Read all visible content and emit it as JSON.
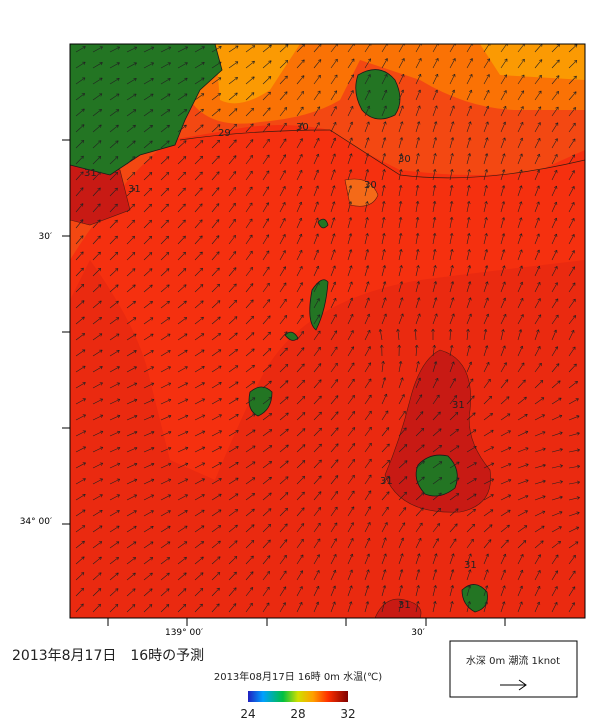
{
  "map": {
    "lat_labels": [
      "30′",
      "34° 00′"
    ],
    "lon_labels": [
      "139° 00′",
      "30′"
    ],
    "contour_labels": [
      "29",
      "30",
      "30",
      "30",
      "31",
      "31",
      "31",
      "31",
      "31",
      "31"
    ]
  },
  "caption": "2013年8月17日　16時の予測",
  "legend": {
    "title": "2013年08月17日 16時 0m 水温(℃)",
    "ticks": [
      24,
      28,
      32
    ]
  },
  "scale_box": {
    "label": "水深 0m 潮流 1knot"
  }
}
